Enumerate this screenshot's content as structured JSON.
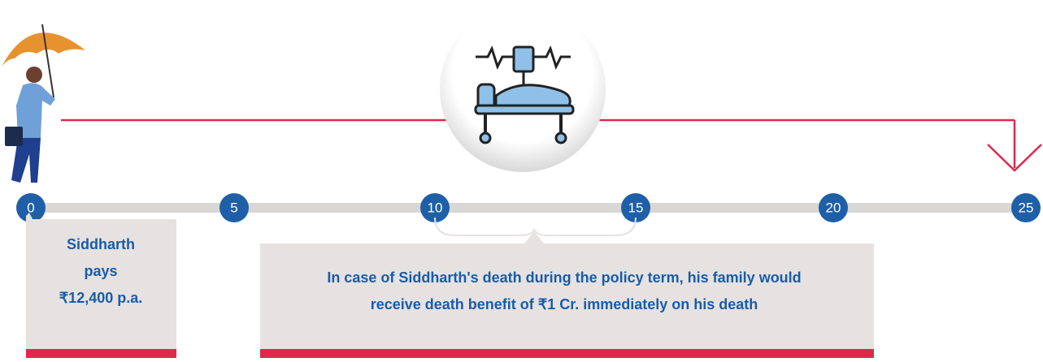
{
  "timeline": {
    "ticks": [
      "0",
      "5",
      "10",
      "15",
      "20",
      "25"
    ]
  },
  "payment_box": {
    "lines": [
      "Siddharth",
      "pays",
      "₹12,400 p.a."
    ]
  },
  "benefit_box": {
    "lines": [
      "In case of Siddharth's death during the policy term, his family would",
      "receive death benefit of ₹1 Cr. immediately on his death"
    ]
  }
}
